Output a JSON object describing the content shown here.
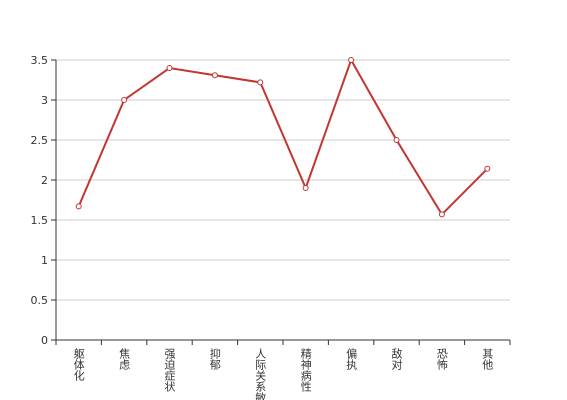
{
  "chart_data": {
    "type": "line",
    "categories": [
      "躯体化",
      "焦虑",
      "强迫症状",
      "抑郁",
      "人际关系敏感",
      "精神病性",
      "偏执",
      "敌对",
      "恐怖",
      "其他"
    ],
    "values": [
      1.67,
      3.0,
      3.4,
      3.31,
      3.22,
      1.9,
      3.5,
      2.5,
      1.57,
      2.14
    ],
    "color": "#c23531",
    "ylim": [
      0,
      3.5
    ],
    "yticks": [
      0,
      0.5,
      1,
      1.5,
      2,
      2.5,
      3,
      3.5
    ],
    "grid": true
  }
}
